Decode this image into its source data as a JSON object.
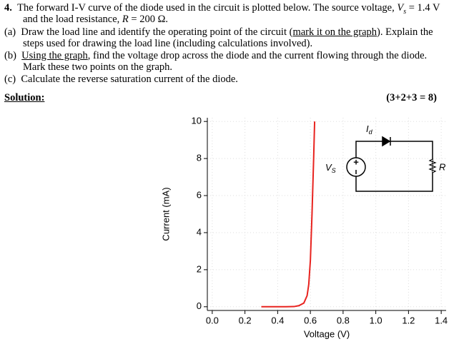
{
  "question": {
    "number": "4.",
    "intro": [
      "The forward I-V curve of the diode used in the circuit is plotted below. The source voltage, ",
      "V",
      "s",
      " = 1.4 V"
    ],
    "intro2": [
      "and the load resistance, ",
      "R",
      " = 200 Ω."
    ]
  },
  "parts": [
    {
      "label": "(a)",
      "lines": [
        [
          "Draw the load line and identify the operating point of the circuit (",
          "mark it on the graph",
          "). Explain the"
        ],
        [
          "steps used for drawing the load line (including calculations involved)."
        ]
      ]
    },
    {
      "label": "(b)",
      "lines": [
        [
          "Using the graph",
          ", find the voltage drop across the diode and the current flowing through the diode."
        ],
        [
          "Mark these two points on the graph."
        ]
      ]
    },
    {
      "label": "(c)",
      "lines": [
        [
          "Calculate the reverse saturation current of the diode."
        ]
      ]
    }
  ],
  "solution": {
    "label": "Solution:",
    "marks": "(3+2+3 = 8)"
  },
  "chart_data": {
    "type": "line",
    "x": [
      0.3,
      0.45,
      0.5,
      0.53,
      0.56,
      0.58,
      0.59,
      0.6,
      0.61,
      0.62,
      0.626
    ],
    "values": [
      0,
      0,
      0.01,
      0.06,
      0.2,
      0.6,
      1.2,
      2.5,
      5,
      8,
      10
    ],
    "color": "#e8231f",
    "xlabel": "Voltage (V)",
    "ylabel": "Current (mA)",
    "xlim": [
      -0.03,
      1.43
    ],
    "ylim": [
      -0.2,
      10.2
    ],
    "xticks": [
      {
        "value": 0,
        "label": "0.0"
      },
      0.2,
      0.4,
      0.6,
      0.8,
      {
        "value": 1,
        "label": "1.0"
      },
      1.2,
      1.4
    ],
    "yticks": [
      0,
      2,
      4,
      6,
      8,
      10
    ],
    "grid": true,
    "inset": {
      "current": [
        "I",
        "d"
      ],
      "source": [
        "V",
        "S"
      ],
      "plus": "+",
      "resistor": "R"
    }
  }
}
